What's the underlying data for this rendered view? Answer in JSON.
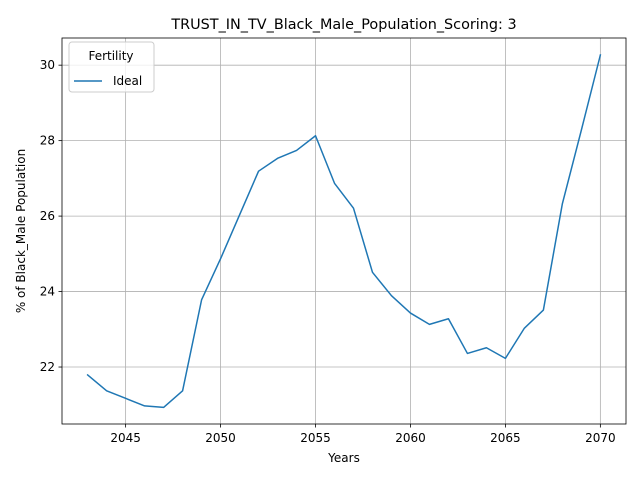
{
  "chart_data": {
    "type": "line",
    "title": "TRUST_IN_TV_Black_Male_Population_Scoring: 3",
    "xlabel": "Years",
    "ylabel": "% of Black_Male Population",
    "xlim": [
      2041.65,
      2071.35
    ],
    "ylim": [
      20.49,
      30.72
    ],
    "xticks": [
      2045,
      2050,
      2055,
      2060,
      2065,
      2070
    ],
    "yticks": [
      22,
      24,
      26,
      28,
      30
    ],
    "grid": true,
    "legend": {
      "title": "Fertility",
      "placement": "top-left"
    },
    "series": [
      {
        "name": "Ideal",
        "color": "#1f77b4",
        "x": [
          2043,
          2044,
          2045,
          2046,
          2047,
          2048,
          2049,
          2050,
          2051,
          2052,
          2053,
          2054,
          2055,
          2056,
          2057,
          2058,
          2059,
          2060,
          2061,
          2062,
          2063,
          2064,
          2065,
          2066,
          2067,
          2068,
          2069,
          2070
        ],
        "y": [
          21.79,
          21.37,
          21.17,
          20.97,
          20.93,
          21.37,
          23.78,
          24.87,
          26.03,
          27.19,
          27.53,
          27.74,
          28.13,
          26.87,
          26.21,
          24.51,
          23.89,
          23.43,
          23.13,
          23.28,
          22.36,
          22.51,
          22.23,
          23.03,
          23.51,
          26.33,
          28.28,
          30.27
        ]
      }
    ]
  }
}
